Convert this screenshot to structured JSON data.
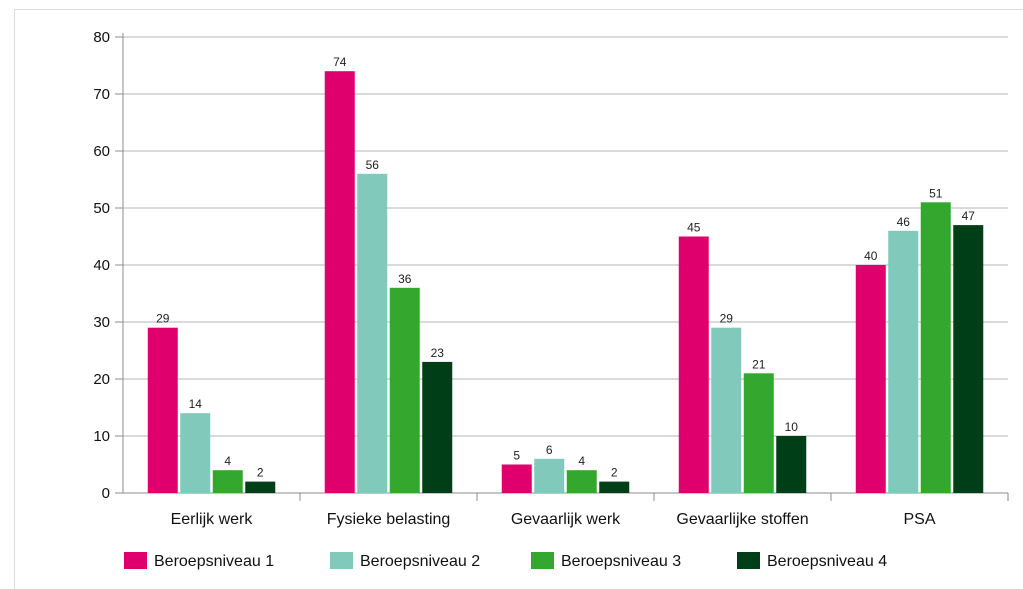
{
  "chart_data": {
    "type": "bar",
    "title": "",
    "xlabel": "",
    "ylabel": "",
    "ylim": [
      0,
      80
    ],
    "yticks": [
      "0",
      "10",
      "20",
      "30",
      "40",
      "50",
      "60",
      "70",
      "80"
    ],
    "grid": true,
    "legend_position": "bottom",
    "categories": [
      "Eerlijk werk",
      "Fysieke belasting",
      "Gevaarlijk werk",
      "Gevaarlijke stoffen",
      "PSA"
    ],
    "series": [
      {
        "name": "Beroepsniveau 1",
        "color": "#e0006d",
        "values": [
          29,
          74,
          5,
          45,
          40
        ]
      },
      {
        "name": "Beroepsniveau 2",
        "color": "#80c9bb",
        "values": [
          14,
          56,
          6,
          29,
          46
        ]
      },
      {
        "name": "Beroepsniveau 3",
        "color": "#34a82e",
        "values": [
          4,
          36,
          4,
          21,
          51
        ]
      },
      {
        "name": "Beroepsniveau 4",
        "color": "#003e18",
        "values": [
          2,
          23,
          2,
          10,
          47
        ]
      }
    ]
  }
}
